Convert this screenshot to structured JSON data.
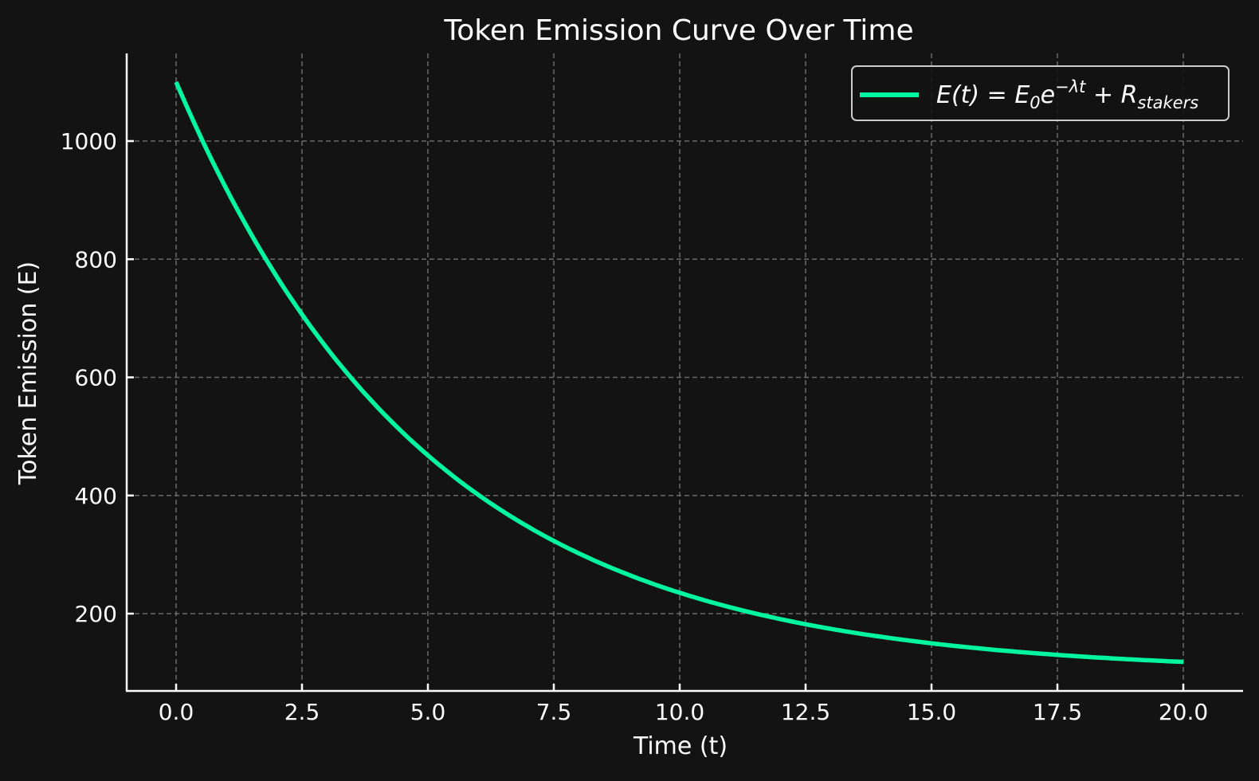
{
  "chart_data": {
    "type": "line",
    "title": "Token Emission Curve Over Time",
    "xlabel": "Time (t)",
    "ylabel": "Token Emission (E)",
    "xlim": [
      -1,
      21
    ],
    "ylim": [
      70,
      1150
    ],
    "xticks": [
      0.0,
      2.5,
      5.0,
      7.5,
      10.0,
      12.5,
      15.0,
      17.5,
      20.0
    ],
    "xtick_labels": [
      "0.0",
      "2.5",
      "5.0",
      "7.5",
      "10.0",
      "12.5",
      "15.0",
      "17.5",
      "20.0"
    ],
    "yticks": [
      200,
      400,
      600,
      800,
      1000
    ],
    "ytick_labels": [
      "200",
      "400",
      "600",
      "800",
      "1000"
    ],
    "grid": true,
    "legend_position": "upper right",
    "series": [
      {
        "name": "E(t) = E0 e^(-λt) + R_stakers",
        "color": "#00f5a0",
        "x": [
          0,
          1,
          2,
          2.5,
          3,
          4,
          5,
          6,
          7,
          7.5,
          8,
          9,
          10,
          11,
          12,
          12.5,
          13,
          14,
          15,
          16,
          17,
          17.5,
          18,
          19,
          20
        ],
        "y": [
          1100,
          919,
          770,
          707,
          649,
          549,
          468,
          401,
          347,
          323,
          302,
          265,
          235,
          211,
          191,
          182,
          174,
          161,
          150,
          141,
          133,
          130,
          127,
          122,
          118
        ]
      }
    ]
  },
  "legend": {
    "label_main": "E(t) = E",
    "label_sub0": "0",
    "label_e": "e",
    "label_sup": "−λt",
    "label_plus": " + R",
    "label_sub_stakers": "stakers"
  },
  "colors": {
    "background": "#131313",
    "line": "#00f5a0",
    "grid": "#6a6a6a",
    "axis": "#ffffff"
  }
}
